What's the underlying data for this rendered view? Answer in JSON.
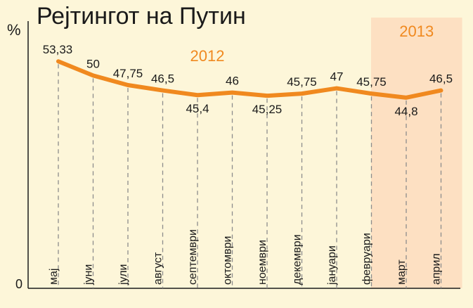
{
  "chart_data": {
    "type": "line",
    "title": "Рејтингот на Путин",
    "ylabel": "%",
    "y_zero_label": "0",
    "ylim": [
      0,
      60
    ],
    "grid": false,
    "highlight_band": {
      "label": "2013",
      "from_category": "март",
      "to_category": "април"
    },
    "year_annotation": "2012",
    "categories": [
      "мај",
      "јуни",
      "јули",
      "август",
      "септември",
      "октомври",
      "ноември",
      "декември",
      "јануари",
      "февруари",
      "март",
      "април"
    ],
    "series": [
      {
        "values": [
          53.33,
          50,
          47.75,
          46.5,
          45.4,
          46,
          45.25,
          45.75,
          47,
          45.75,
          44.8,
          46.5
        ],
        "value_labels": [
          "53,33",
          "50",
          "47,75",
          "46,5",
          "45,4",
          "46",
          "45,25",
          "45,75",
          "47",
          "45,75",
          "44,8",
          "46,5"
        ]
      }
    ],
    "colors": {
      "background": "#fdf6d9",
      "line": "#f0891f",
      "year_text": "#f0891f",
      "band": "#fde0c2",
      "text": "#1a1a1a",
      "dashed": "#8c8c8c"
    }
  }
}
